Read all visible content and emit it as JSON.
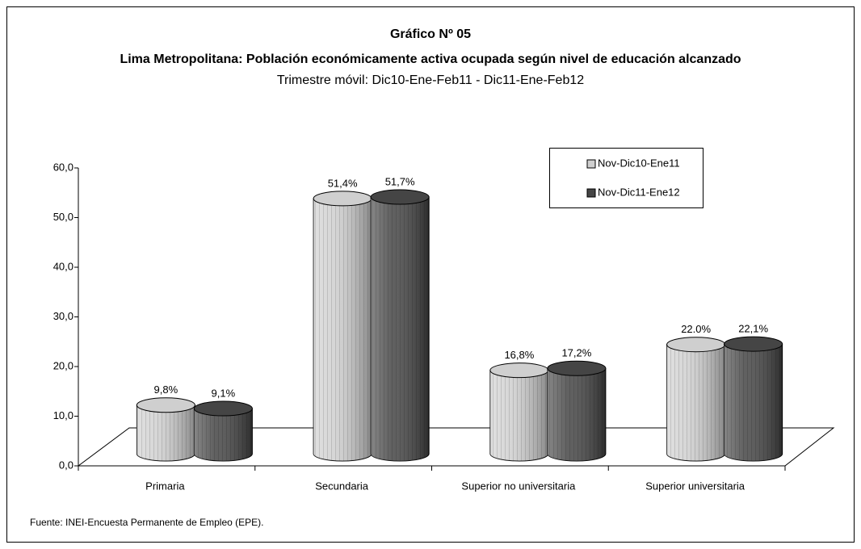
{
  "chart_data": {
    "type": "bar",
    "title": "Gráfico Nº 05",
    "subtitle": "Lima Metropolitana: Población económicamente activa ocupada según nivel de educación alcanzado",
    "period": "Trimestre móvil: Dic10-Ene-Feb11 - Dic11-Ene-Feb12",
    "source": "Fuente: INEI-Encuesta Permanente de Empleo (EPE).",
    "categories": [
      "Primaria",
      "Secundaria",
      "Superior no universitaria",
      "Superior universitaria"
    ],
    "series": [
      {
        "name": "Nov-Dic10-Ene11",
        "color": "#cfcfcf",
        "values": [
          9.8,
          51.4,
          16.8,
          22.0
        ],
        "value_labels": [
          "9,8%",
          "51,4%",
          "16,8%",
          "22.0%"
        ]
      },
      {
        "name": "Nov-Dic11-Ene12",
        "color": "#454545",
        "values": [
          9.1,
          51.7,
          17.2,
          22.1
        ],
        "value_labels": [
          "9,1%",
          "51,7%",
          "17,2%",
          "22,1%"
        ]
      }
    ],
    "ylim": [
      0,
      60
    ],
    "yticks": [
      {
        "value": 0,
        "label": "0,0"
      },
      {
        "value": 10,
        "label": "10,0"
      },
      {
        "value": 20,
        "label": "20,0"
      },
      {
        "value": 30,
        "label": "30,0"
      },
      {
        "value": 40,
        "label": "40,0"
      },
      {
        "value": 50,
        "label": "50,0"
      },
      {
        "value": 60,
        "label": "60,0"
      }
    ],
    "legend": "upper right"
  }
}
